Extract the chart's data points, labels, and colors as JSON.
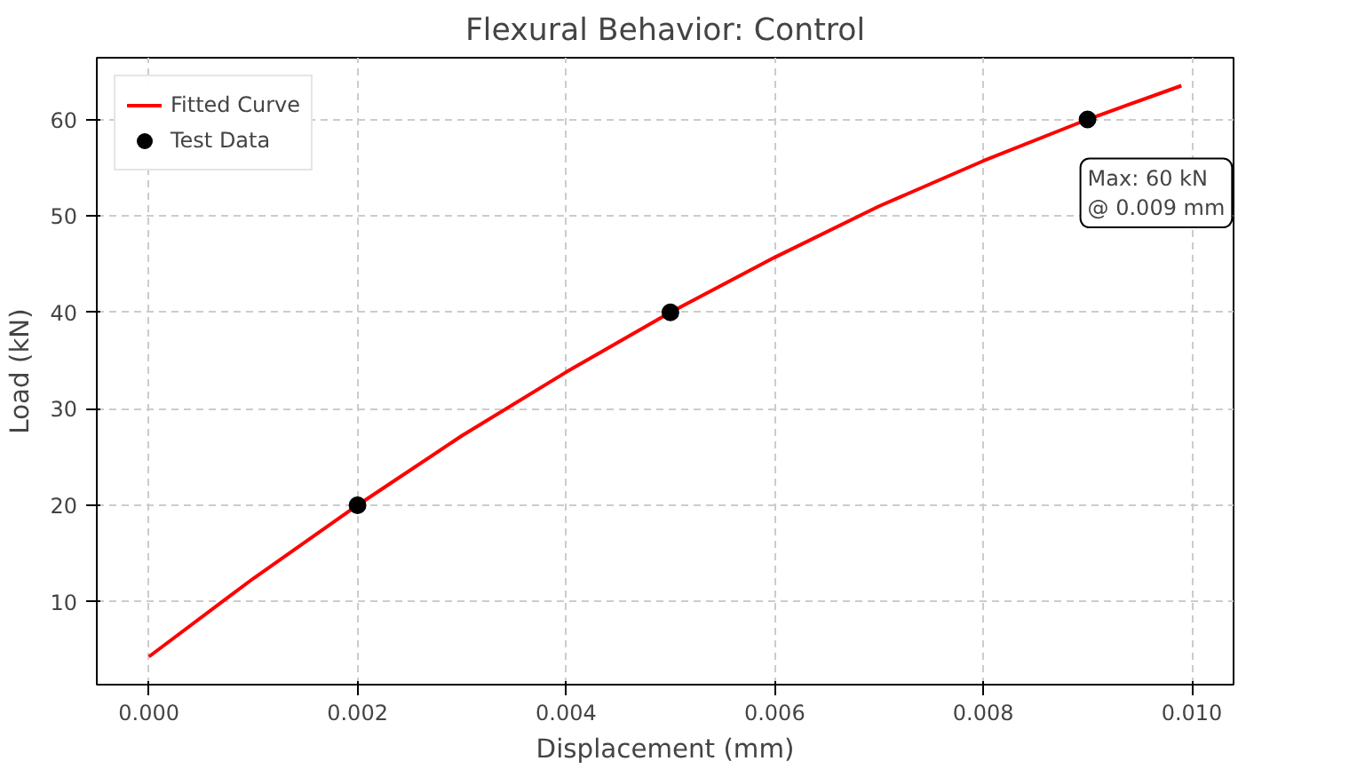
{
  "chart_data": {
    "type": "line",
    "title": "Flexural Behavior: Control",
    "xlabel": "Displacement (mm)",
    "ylabel": "Load (kN)",
    "series": [
      {
        "name": "Fitted Curve",
        "color": "#ff0000",
        "marker": "none",
        "x": [
          0,
          0.001,
          0.002,
          0.003,
          0.004,
          0.005,
          0.006,
          0.007,
          0.008,
          0.009,
          0.0099
        ],
        "values": [
          4.3,
          12.4,
          20,
          27.2,
          33.8,
          40,
          45.7,
          51,
          55.7,
          60,
          63.5
        ]
      },
      {
        "name": "Test Data",
        "type": "scatter",
        "color": "#000000",
        "marker": "circle",
        "x": [
          0.002,
          0.005,
          0.009
        ],
        "values": [
          20,
          40,
          60
        ]
      }
    ],
    "annotations": [
      {
        "text": "Max: 60 kN\n@ 0.009 mm",
        "x": 0.009,
        "y": 60
      }
    ],
    "xlim": [
      -0.0005,
      0.0104
    ],
    "ylim": [
      1.4,
      66.4
    ],
    "xticks": [
      {
        "value": 0,
        "label": "0.000"
      },
      {
        "value": 0.002,
        "label": "0.002"
      },
      {
        "value": 0.004,
        "label": "0.004"
      },
      {
        "value": 0.006,
        "label": "0.006"
      },
      {
        "value": 0.008,
        "label": "0.008"
      },
      {
        "value": 0.01,
        "label": "0.010"
      }
    ],
    "yticks": [
      10,
      20,
      30,
      40,
      50,
      60
    ],
    "grid": true,
    "legend": "top left",
    "line_style": "solid"
  }
}
